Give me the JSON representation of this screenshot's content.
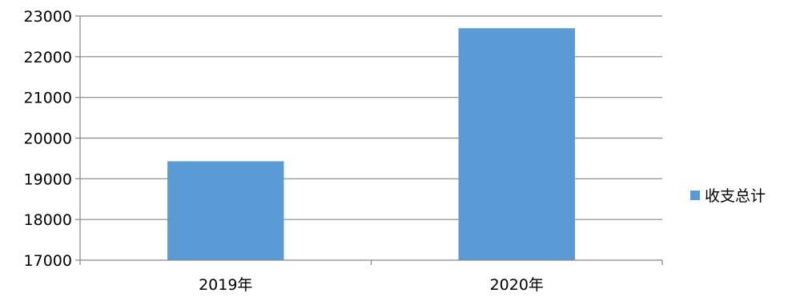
{
  "chart_data": {
    "type": "bar",
    "categories": [
      "2019年",
      "2020年"
    ],
    "series": [
      {
        "name": "收支总计",
        "values": [
          19430,
          22700
        ],
        "color": "#5B9BD5"
      }
    ],
    "ylim": [
      17000,
      23000
    ],
    "yticks": [
      17000,
      18000,
      19000,
      20000,
      21000,
      22000,
      23000
    ],
    "ytick_labels": [
      "17000",
      "18000",
      "19000",
      "20000",
      "21000",
      "22000",
      "23000"
    ],
    "grid": true,
    "legend_position": "right",
    "gridline_color": "#868686",
    "axis_color": "#868686"
  }
}
